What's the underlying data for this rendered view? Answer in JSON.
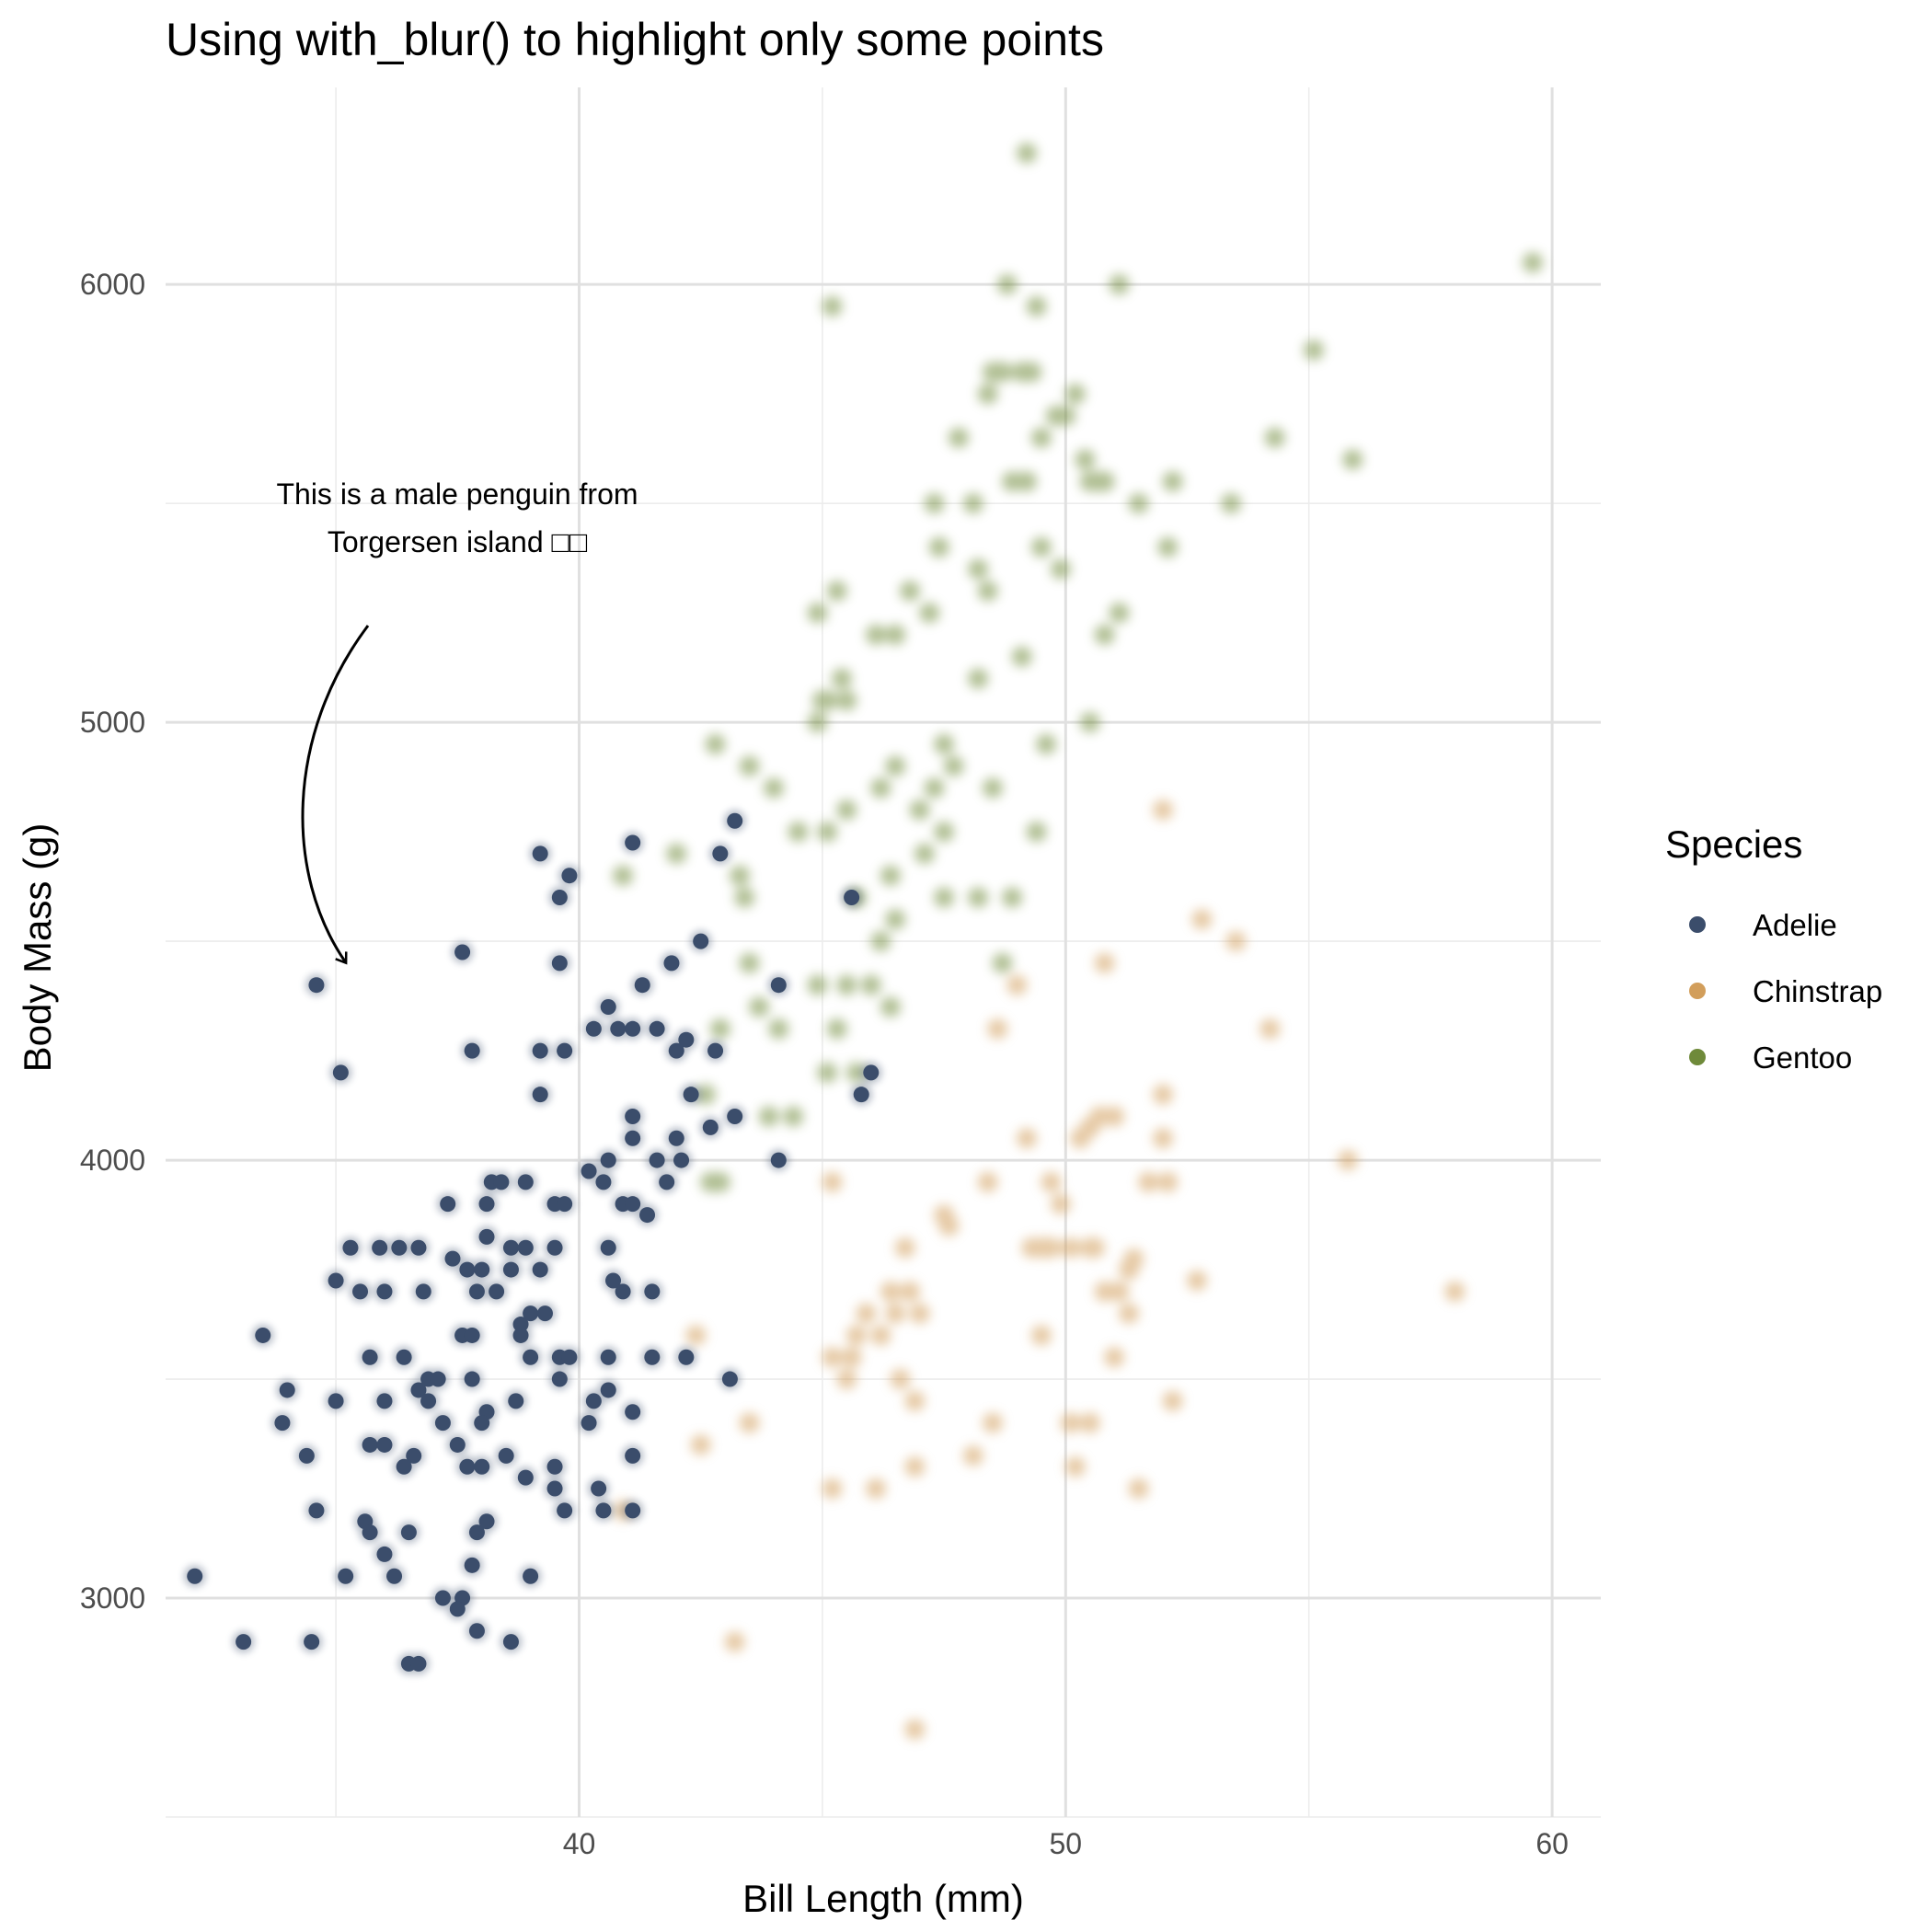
{
  "chart_data": {
    "type": "scatter",
    "title": "Using with_blur() to highlight only some points",
    "xlabel": "Bill Length (mm)",
    "ylabel": "Body Mass (g)",
    "xlim": [
      31.5,
      61
    ],
    "ylim": [
      2500,
      6450
    ],
    "x_ticks": [
      40,
      50,
      60
    ],
    "y_ticks": [
      3000,
      4000,
      5000,
      6000
    ],
    "grid": true,
    "legend": {
      "title": "Species",
      "position": "right"
    },
    "highlighted_series": "Adelie",
    "annotation": {
      "lines": [
        "This is a male penguin from",
        "Torgersen island □□"
      ],
      "target": [
        34.6,
        4400
      ]
    },
    "colors": {
      "Adelie": "#3b4d6b",
      "Chinstrap": "#d29e5b",
      "Gentoo": "#6f8a3a"
    },
    "series": [
      {
        "name": "Adelie",
        "blurred": false,
        "points": [
          [
            34.6,
            4400
          ],
          [
            35.1,
            4200
          ],
          [
            39.2,
            4700
          ],
          [
            39.8,
            4650
          ],
          [
            41.1,
            4725
          ],
          [
            43.2,
            4775
          ],
          [
            42.9,
            4700
          ],
          [
            45.6,
            4600
          ],
          [
            39.6,
            4600
          ],
          [
            37.6,
            4475
          ],
          [
            42.5,
            4500
          ],
          [
            39.6,
            4450
          ],
          [
            41.9,
            4450
          ],
          [
            41.3,
            4400
          ],
          [
            44.1,
            4400
          ],
          [
            40.6,
            4350
          ],
          [
            40.3,
            4300
          ],
          [
            40.8,
            4300
          ],
          [
            41.1,
            4300
          ],
          [
            41.6,
            4300
          ],
          [
            37.8,
            4250
          ],
          [
            39.2,
            4250
          ],
          [
            39.7,
            4250
          ],
          [
            42.0,
            4250
          ],
          [
            42.8,
            4250
          ],
          [
            42.2,
            4275
          ],
          [
            45.8,
            4150
          ],
          [
            46.0,
            4200
          ],
          [
            39.2,
            4150
          ],
          [
            42.3,
            4150
          ],
          [
            41.1,
            4100
          ],
          [
            43.2,
            4100
          ],
          [
            42.7,
            4075
          ],
          [
            41.1,
            4050
          ],
          [
            42.0,
            4050
          ],
          [
            40.6,
            4000
          ],
          [
            41.6,
            4000
          ],
          [
            42.1,
            4000
          ],
          [
            44.1,
            4000
          ],
          [
            40.2,
            3975
          ],
          [
            40.5,
            3950
          ],
          [
            41.8,
            3950
          ],
          [
            38.2,
            3950
          ],
          [
            38.4,
            3950
          ],
          [
            38.9,
            3950
          ],
          [
            41.4,
            3875
          ],
          [
            37.3,
            3900
          ],
          [
            38.1,
            3900
          ],
          [
            39.5,
            3900
          ],
          [
            39.7,
            3900
          ],
          [
            40.9,
            3900
          ],
          [
            41.1,
            3900
          ],
          [
            38.1,
            3825
          ],
          [
            35.3,
            3800
          ],
          [
            35.9,
            3800
          ],
          [
            36.3,
            3800
          ],
          [
            36.7,
            3800
          ],
          [
            38.6,
            3800
          ],
          [
            38.9,
            3800
          ],
          [
            39.5,
            3800
          ],
          [
            40.6,
            3800
          ],
          [
            37.4,
            3775
          ],
          [
            37.7,
            3750
          ],
          [
            38.0,
            3750
          ],
          [
            38.6,
            3750
          ],
          [
            39.2,
            3750
          ],
          [
            35.0,
            3725
          ],
          [
            40.7,
            3725
          ],
          [
            35.5,
            3700
          ],
          [
            36.0,
            3700
          ],
          [
            36.8,
            3700
          ],
          [
            37.9,
            3700
          ],
          [
            38.3,
            3700
          ],
          [
            40.9,
            3700
          ],
          [
            41.5,
            3700
          ],
          [
            39.0,
            3650
          ],
          [
            39.3,
            3650
          ],
          [
            38.8,
            3625
          ],
          [
            38.8,
            3600
          ],
          [
            33.5,
            3600
          ],
          [
            37.6,
            3600
          ],
          [
            37.8,
            3600
          ],
          [
            35.7,
            3550
          ],
          [
            36.4,
            3550
          ],
          [
            39.0,
            3550
          ],
          [
            39.6,
            3550
          ],
          [
            39.8,
            3550
          ],
          [
            40.6,
            3550
          ],
          [
            41.5,
            3550
          ],
          [
            42.2,
            3550
          ],
          [
            39.6,
            3500
          ],
          [
            36.9,
            3500
          ],
          [
            37.1,
            3500
          ],
          [
            37.8,
            3500
          ],
          [
            43.1,
            3500
          ],
          [
            34.0,
            3475
          ],
          [
            36.7,
            3475
          ],
          [
            40.6,
            3475
          ],
          [
            35.0,
            3450
          ],
          [
            36.0,
            3450
          ],
          [
            36.9,
            3450
          ],
          [
            38.7,
            3450
          ],
          [
            40.3,
            3450
          ],
          [
            41.1,
            3425
          ],
          [
            38.1,
            3425
          ],
          [
            33.9,
            3400
          ],
          [
            37.2,
            3400
          ],
          [
            38.0,
            3400
          ],
          [
            40.2,
            3400
          ],
          [
            35.7,
            3350
          ],
          [
            36.0,
            3350
          ],
          [
            37.5,
            3350
          ],
          [
            34.4,
            3325
          ],
          [
            36.6,
            3325
          ],
          [
            38.5,
            3325
          ],
          [
            41.1,
            3325
          ],
          [
            36.4,
            3300
          ],
          [
            37.7,
            3300
          ],
          [
            38.0,
            3300
          ],
          [
            39.5,
            3300
          ],
          [
            38.9,
            3275
          ],
          [
            39.5,
            3250
          ],
          [
            40.4,
            3250
          ],
          [
            34.6,
            3200
          ],
          [
            39.7,
            3200
          ],
          [
            40.5,
            3200
          ],
          [
            41.1,
            3200
          ],
          [
            35.6,
            3175
          ],
          [
            38.1,
            3175
          ],
          [
            35.7,
            3150
          ],
          [
            36.5,
            3150
          ],
          [
            37.9,
            3150
          ],
          [
            36.0,
            3100
          ],
          [
            37.8,
            3075
          ],
          [
            32.1,
            3050
          ],
          [
            35.2,
            3050
          ],
          [
            36.2,
            3050
          ],
          [
            39.0,
            3050
          ],
          [
            37.2,
            3000
          ],
          [
            37.6,
            3000
          ],
          [
            37.5,
            2975
          ],
          [
            37.9,
            2925
          ],
          [
            33.1,
            2900
          ],
          [
            34.5,
            2900
          ],
          [
            38.6,
            2900
          ],
          [
            36.5,
            2850
          ],
          [
            36.7,
            2850
          ]
        ]
      },
      {
        "name": "Chinstrap",
        "blurred": true,
        "points": [
          [
            52.0,
            4800
          ],
          [
            52.8,
            4550
          ],
          [
            53.5,
            4500
          ],
          [
            50.8,
            4450
          ],
          [
            49.0,
            4400
          ],
          [
            54.2,
            4300
          ],
          [
            48.6,
            4300
          ],
          [
            52.0,
            4150
          ],
          [
            51.0,
            4100
          ],
          [
            50.7,
            4100
          ],
          [
            50.5,
            4075
          ],
          [
            50.3,
            4050
          ],
          [
            52.0,
            4050
          ],
          [
            49.2,
            4050
          ],
          [
            55.8,
            4000
          ],
          [
            45.2,
            3950
          ],
          [
            51.7,
            3950
          ],
          [
            52.1,
            3950
          ],
          [
            48.4,
            3950
          ],
          [
            49.7,
            3950
          ],
          [
            49.9,
            3900
          ],
          [
            47.5,
            3875
          ],
          [
            47.6,
            3850
          ],
          [
            49.3,
            3800
          ],
          [
            49.6,
            3800
          ],
          [
            49.7,
            3800
          ],
          [
            49.5,
            3800
          ],
          [
            50.1,
            3800
          ],
          [
            50.5,
            3800
          ],
          [
            50.6,
            3800
          ],
          [
            51.4,
            3775
          ],
          [
            46.7,
            3800
          ],
          [
            52.7,
            3725
          ],
          [
            51.3,
            3750
          ],
          [
            51.1,
            3700
          ],
          [
            50.8,
            3700
          ],
          [
            46.4,
            3700
          ],
          [
            46.8,
            3700
          ],
          [
            47.0,
            3650
          ],
          [
            46.5,
            3650
          ],
          [
            58.0,
            3700
          ],
          [
            45.9,
            3650
          ],
          [
            45.7,
            3600
          ],
          [
            51.3,
            3650
          ],
          [
            49.5,
            3600
          ],
          [
            46.2,
            3600
          ],
          [
            42.4,
            3600
          ],
          [
            45.6,
            3550
          ],
          [
            45.2,
            3550
          ],
          [
            45.5,
            3500
          ],
          [
            51.0,
            3550
          ],
          [
            46.6,
            3500
          ],
          [
            46.9,
            3450
          ],
          [
            52.2,
            3450
          ],
          [
            43.5,
            3400
          ],
          [
            48.5,
            3400
          ],
          [
            50.1,
            3400
          ],
          [
            50.5,
            3400
          ],
          [
            42.5,
            3350
          ],
          [
            48.1,
            3325
          ],
          [
            46.9,
            3300
          ],
          [
            50.2,
            3300
          ],
          [
            51.5,
            3250
          ],
          [
            45.2,
            3250
          ],
          [
            46.1,
            3250
          ],
          [
            40.9,
            3200
          ],
          [
            43.2,
            2900
          ],
          [
            46.9,
            2700
          ]
        ]
      },
      {
        "name": "Gentoo",
        "blurred": true,
        "points": [
          [
            49.2,
            6300
          ],
          [
            59.6,
            6050
          ],
          [
            48.8,
            6000
          ],
          [
            51.1,
            6000
          ],
          [
            45.2,
            5950
          ],
          [
            49.4,
            5950
          ],
          [
            55.1,
            5850
          ],
          [
            48.5,
            5800
          ],
          [
            48.7,
            5800
          ],
          [
            49.1,
            5800
          ],
          [
            49.3,
            5800
          ],
          [
            48.4,
            5750
          ],
          [
            49.8,
            5700
          ],
          [
            50.0,
            5700
          ],
          [
            50.2,
            5750
          ],
          [
            49.5,
            5650
          ],
          [
            47.8,
            5650
          ],
          [
            54.3,
            5650
          ],
          [
            55.9,
            5600
          ],
          [
            50.4,
            5600
          ],
          [
            50.7,
            5550
          ],
          [
            50.8,
            5550
          ],
          [
            50.5,
            5550
          ],
          [
            49.2,
            5550
          ],
          [
            48.9,
            5550
          ],
          [
            51.5,
            5500
          ],
          [
            53.4,
            5500
          ],
          [
            47.3,
            5500
          ],
          [
            48.1,
            5500
          ],
          [
            52.2,
            5550
          ],
          [
            52.1,
            5400
          ],
          [
            49.5,
            5400
          ],
          [
            49.9,
            5350
          ],
          [
            48.2,
            5350
          ],
          [
            47.4,
            5400
          ],
          [
            46.8,
            5300
          ],
          [
            45.3,
            5300
          ],
          [
            48.4,
            5300
          ],
          [
            51.1,
            5250
          ],
          [
            50.8,
            5200
          ],
          [
            44.9,
            5250
          ],
          [
            46.1,
            5200
          ],
          [
            46.5,
            5200
          ],
          [
            47.2,
            5250
          ],
          [
            45.4,
            5100
          ],
          [
            45.1,
            5050
          ],
          [
            45.0,
            5050
          ],
          [
            44.9,
            5000
          ],
          [
            45.5,
            5050
          ],
          [
            48.2,
            5100
          ],
          [
            49.1,
            5150
          ],
          [
            50.5,
            5000
          ],
          [
            49.6,
            4950
          ],
          [
            47.5,
            4950
          ],
          [
            46.5,
            4900
          ],
          [
            47.7,
            4900
          ],
          [
            42.8,
            4950
          ],
          [
            43.5,
            4900
          ],
          [
            44.0,
            4850
          ],
          [
            46.2,
            4850
          ],
          [
            47.3,
            4850
          ],
          [
            48.5,
            4850
          ],
          [
            47.0,
            4800
          ],
          [
            45.5,
            4800
          ],
          [
            44.5,
            4750
          ],
          [
            47.5,
            4750
          ],
          [
            49.4,
            4750
          ],
          [
            45.1,
            4750
          ],
          [
            47.1,
            4700
          ],
          [
            42.0,
            4700
          ],
          [
            40.9,
            4650
          ],
          [
            46.4,
            4650
          ],
          [
            43.3,
            4650
          ],
          [
            43.4,
            4600
          ],
          [
            47.5,
            4600
          ],
          [
            48.2,
            4600
          ],
          [
            48.9,
            4600
          ],
          [
            45.7,
            4600
          ],
          [
            46.5,
            4550
          ],
          [
            46.2,
            4500
          ],
          [
            43.5,
            4450
          ],
          [
            48.7,
            4450
          ],
          [
            44.9,
            4400
          ],
          [
            45.5,
            4400
          ],
          [
            46.0,
            4400
          ],
          [
            46.4,
            4350
          ],
          [
            43.7,
            4350
          ],
          [
            44.1,
            4300
          ],
          [
            42.9,
            4300
          ],
          [
            45.3,
            4300
          ],
          [
            45.1,
            4200
          ],
          [
            45.7,
            4200
          ],
          [
            42.6,
            4150
          ],
          [
            43.9,
            4100
          ],
          [
            44.4,
            4100
          ],
          [
            42.9,
            3950
          ],
          [
            42.7,
            3950
          ]
        ]
      }
    ]
  }
}
